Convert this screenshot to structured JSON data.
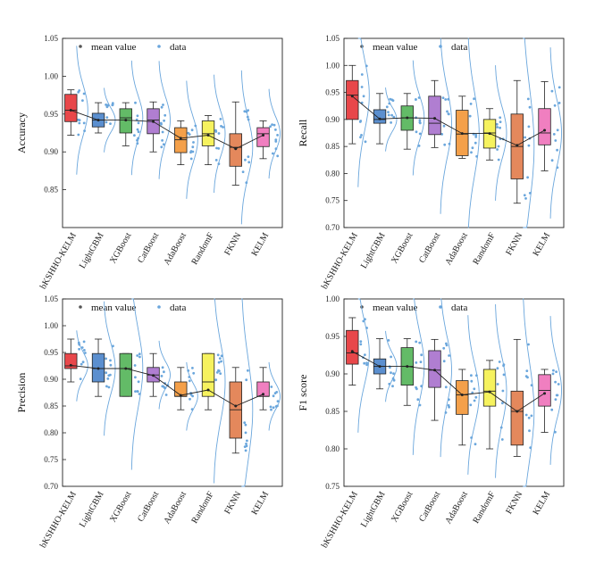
{
  "legend": {
    "mean_label": "mean value",
    "data_label": "data"
  },
  "colors": {
    "bKSHHO-KELM": "#e8474a",
    "LightGBM": "#5b8fcf",
    "XGBoost": "#63bb67",
    "CatBoost": "#b07ed1",
    "AdaBoost": "#f4a04a",
    "RandomF": "#f6f25e",
    "FKNN": "#e4885c",
    "KELM": "#f07fc0",
    "dots": "#6aa6dc",
    "curve": "#6aa6dc",
    "mean_line": "#222222"
  },
  "chart_data": [
    {
      "type": "box",
      "ylabel": "Accuracy",
      "ylim": [
        0.8,
        1.05
      ],
      "yticks": [
        "0.85",
        "0.90",
        "0.95",
        "1.00",
        "1.05"
      ],
      "categories": [
        "bKSHHO-KELM",
        "LightGBM",
        "XGBoost",
        "CatBoost",
        "AdaBoost",
        "RandomF",
        "FKNN",
        "KELM"
      ],
      "boxes": [
        {
          "min": 0.922,
          "q1": 0.94,
          "median": 0.955,
          "q3": 0.976,
          "max": 0.982
        },
        {
          "min": 0.925,
          "q1": 0.933,
          "median": 0.942,
          "q3": 0.951,
          "max": 0.965
        },
        {
          "min": 0.908,
          "q1": 0.925,
          "median": 0.945,
          "q3": 0.957,
          "max": 0.965
        },
        {
          "min": 0.9,
          "q1": 0.924,
          "median": 0.942,
          "q3": 0.957,
          "max": 0.966
        },
        {
          "min": 0.883,
          "q1": 0.899,
          "median": 0.916,
          "q3": 0.932,
          "max": 0.941
        },
        {
          "min": 0.883,
          "q1": 0.908,
          "median": 0.924,
          "q3": 0.941,
          "max": 0.948
        },
        {
          "min": 0.856,
          "q1": 0.881,
          "median": 0.906,
          "q3": 0.924,
          "max": 0.966
        },
        {
          "min": 0.891,
          "q1": 0.907,
          "median": 0.924,
          "q3": 0.932,
          "max": 0.941
        }
      ],
      "means": [
        0.955,
        0.942,
        0.942,
        0.94,
        0.918,
        0.922,
        0.904,
        0.922
      ]
    },
    {
      "type": "box",
      "ylabel": "Recall",
      "ylim": [
        0.7,
        1.05
      ],
      "yticks": [
        "0.70",
        "0.75",
        "0.80",
        "0.85",
        "0.90",
        "0.95",
        "1.00",
        "1.05"
      ],
      "categories": [
        "bKSHHO-KELM",
        "LightGBM",
        "XGBoost",
        "CatBoost",
        "AdaBoost",
        "RandomF",
        "FKNN",
        "KELM"
      ],
      "boxes": [
        {
          "min": 0.855,
          "q1": 0.9,
          "median": 0.945,
          "q3": 0.972,
          "max": 1.0
        },
        {
          "min": 0.855,
          "q1": 0.893,
          "median": 0.9,
          "q3": 0.918,
          "max": 0.948
        },
        {
          "min": 0.845,
          "q1": 0.88,
          "median": 0.903,
          "q3": 0.925,
          "max": 0.948
        },
        {
          "min": 0.848,
          "q1": 0.872,
          "median": 0.893,
          "q3": 0.943,
          "max": 0.972
        },
        {
          "min": 0.828,
          "q1": 0.833,
          "median": 0.873,
          "q3": 0.917,
          "max": 0.943
        },
        {
          "min": 0.825,
          "q1": 0.847,
          "median": 0.875,
          "q3": 0.9,
          "max": 0.92
        },
        {
          "min": 0.745,
          "q1": 0.79,
          "median": 0.85,
          "q3": 0.91,
          "max": 0.972
        },
        {
          "min": 0.805,
          "q1": 0.853,
          "median": 0.875,
          "q3": 0.92,
          "max": 0.97
        }
      ],
      "means": [
        0.943,
        0.901,
        0.903,
        0.902,
        0.874,
        0.874,
        0.852,
        0.88
      ]
    },
    {
      "type": "box",
      "ylabel": "Precision",
      "ylim": [
        0.7,
        1.05
      ],
      "yticks": [
        "0.70",
        "0.75",
        "0.80",
        "0.85",
        "0.90",
        "0.95",
        "1.00",
        "1.05"
      ],
      "categories": [
        "bKSHHO-KELM",
        "LightGBM",
        "XGBoost",
        "CatBoost",
        "AdaBoost",
        "RandomF",
        "FKNN",
        "KELM"
      ],
      "boxes": [
        {
          "min": 0.895,
          "q1": 0.92,
          "median": 0.925,
          "q3": 0.948,
          "max": 0.975
        },
        {
          "min": 0.868,
          "q1": 0.895,
          "median": 0.92,
          "q3": 0.948,
          "max": 0.975
        },
        {
          "min": 0.868,
          "q1": 0.868,
          "median": 0.92,
          "q3": 0.948,
          "max": 0.948
        },
        {
          "min": 0.868,
          "q1": 0.895,
          "median": 0.908,
          "q3": 0.922,
          "max": 0.948
        },
        {
          "min": 0.843,
          "q1": 0.868,
          "median": 0.868,
          "q3": 0.895,
          "max": 0.922
        },
        {
          "min": 0.843,
          "q1": 0.868,
          "median": 0.895,
          "q3": 0.948,
          "max": 0.948
        },
        {
          "min": 0.762,
          "q1": 0.79,
          "median": 0.843,
          "q3": 0.895,
          "max": 0.922
        },
        {
          "min": 0.843,
          "q1": 0.868,
          "median": 0.868,
          "q3": 0.895,
          "max": 0.922
        }
      ],
      "means": [
        0.926,
        0.92,
        0.92,
        0.907,
        0.87,
        0.88,
        0.85,
        0.872
      ]
    },
    {
      "type": "box",
      "ylabel": "F1 score",
      "ylim": [
        0.75,
        1.0
      ],
      "yticks": [
        "0.75",
        "0.80",
        "0.85",
        "0.90",
        "0.95",
        "1.00"
      ],
      "categories": [
        "bKSHHO-KELM",
        "LightGBM",
        "XGBoost",
        "CatBoost",
        "AdaBoost",
        "RandomF",
        "FKNN",
        "KELM"
      ],
      "boxes": [
        {
          "min": 0.885,
          "q1": 0.913,
          "median": 0.928,
          "q3": 0.958,
          "max": 0.975
        },
        {
          "min": 0.88,
          "q1": 0.9,
          "median": 0.91,
          "q3": 0.92,
          "max": 0.947
        },
        {
          "min": 0.858,
          "q1": 0.885,
          "median": 0.91,
          "q3": 0.935,
          "max": 0.947
        },
        {
          "min": 0.838,
          "q1": 0.882,
          "median": 0.905,
          "q3": 0.931,
          "max": 0.946
        },
        {
          "min": 0.805,
          "q1": 0.846,
          "median": 0.872,
          "q3": 0.891,
          "max": 0.906
        },
        {
          "min": 0.8,
          "q1": 0.857,
          "median": 0.877,
          "q3": 0.906,
          "max": 0.918
        },
        {
          "min": 0.79,
          "q1": 0.805,
          "median": 0.85,
          "q3": 0.877,
          "max": 0.946
        },
        {
          "min": 0.822,
          "q1": 0.857,
          "median": 0.878,
          "q3": 0.899,
          "max": 0.906
        }
      ],
      "means": [
        0.93,
        0.91,
        0.91,
        0.905,
        0.872,
        0.876,
        0.85,
        0.874
      ]
    }
  ]
}
